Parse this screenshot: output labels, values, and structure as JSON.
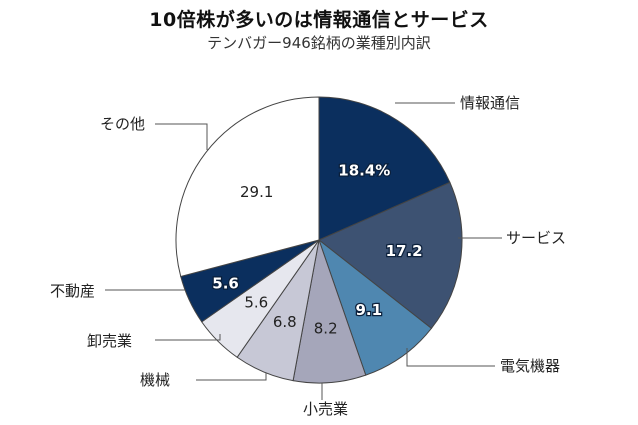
{
  "header": {
    "title": "10倍株が多いのは情報通信とサービス",
    "subtitle": "テンバガー946銘柄の業種別内訳"
  },
  "chart_data": {
    "type": "pie",
    "start_angle_deg": 0,
    "direction": "clockwise",
    "slices": [
      {
        "name": "情報通信",
        "value": 18.4,
        "label": "18.4%",
        "color": "#0b2f5e",
        "label_color": "#ffffff"
      },
      {
        "name": "サービス",
        "value": 17.2,
        "label": "17.2",
        "color": "#3d5272",
        "label_color": "#ffffff"
      },
      {
        "name": "電気機器",
        "value": 9.1,
        "label": "9.1",
        "color": "#4f87b0",
        "label_color": "#ffffff"
      },
      {
        "name": "小売業",
        "value": 8.2,
        "label": "8.2",
        "color": "#a5a6ba",
        "label_color": "#222222"
      },
      {
        "name": "機械",
        "value": 6.8,
        "label": "6.8",
        "color": "#c7c8d6",
        "label_color": "#222222"
      },
      {
        "name": "卸売業",
        "value": 5.6,
        "label": "5.6",
        "color": "#e6e7ee",
        "label_color": "#222222"
      },
      {
        "name": "不動産",
        "value": 5.6,
        "label": "5.6",
        "color": "#0b2f5e",
        "label_color": "#ffffff"
      },
      {
        "name": "その他",
        "value": 29.1,
        "label": "29.1",
        "color": "#ffffff",
        "label_color": "#222222"
      }
    ]
  }
}
